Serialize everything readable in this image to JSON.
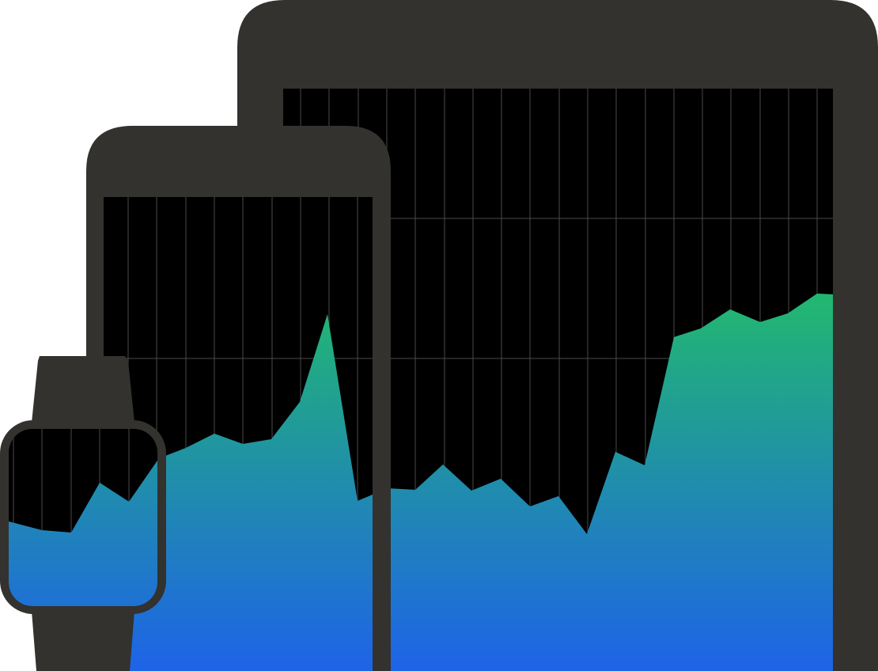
{
  "colors": {
    "device_body": "#33322e",
    "screen": "#000000",
    "grid_line": "#4a4a4a",
    "gradient_top": "#22b86f",
    "gradient_bottom": "#1e63e8",
    "background": "#ffffff"
  },
  "devices": [
    {
      "kind": "tablet"
    },
    {
      "kind": "phone"
    },
    {
      "kind": "watch"
    }
  ]
}
